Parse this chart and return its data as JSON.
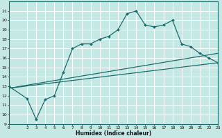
{
  "xlabel": "Humidex (Indice chaleur)",
  "bg_color": "#c5e8e5",
  "grid_color": "#ffffff",
  "line_color": "#1a6b6b",
  "xlim": [
    0,
    23
  ],
  "ylim": [
    9,
    22
  ],
  "xticks": [
    0,
    2,
    3,
    4,
    5,
    6,
    7,
    8,
    9,
    10,
    11,
    12,
    13,
    14,
    15,
    16,
    17,
    18,
    19,
    20,
    21,
    22,
    23
  ],
  "yticks": [
    9,
    10,
    11,
    12,
    13,
    14,
    15,
    16,
    17,
    18,
    19,
    20,
    21
  ],
  "line1_x": [
    0,
    2,
    3,
    4,
    5,
    6,
    7,
    8,
    9,
    10,
    11,
    12,
    13,
    14,
    15,
    16,
    17,
    18,
    19,
    20,
    21,
    22,
    23
  ],
  "line1_y": [
    13.0,
    11.7,
    9.5,
    11.6,
    12.0,
    14.5,
    17.0,
    17.5,
    17.5,
    18.0,
    18.3,
    19.0,
    20.7,
    21.0,
    19.5,
    19.3,
    19.5,
    20.0,
    17.5,
    17.2,
    16.5,
    16.0,
    15.5
  ],
  "line2_x": [
    0,
    23
  ],
  "line2_y": [
    12.8,
    16.5
  ],
  "line3_x": [
    0,
    23
  ],
  "line3_y": [
    12.8,
    15.5
  ],
  "xlabel_fontsize": 5.5,
  "tick_fontsize": 4.5
}
